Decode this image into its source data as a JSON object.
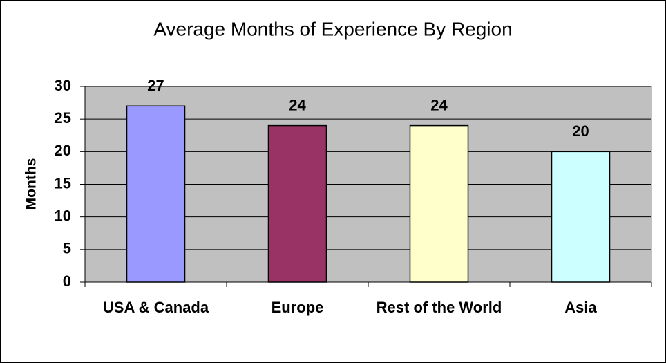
{
  "chart_data": {
    "type": "bar",
    "title": "Average Months of Experience By Region",
    "y_label": "Months",
    "categories": [
      "USA & Canada",
      "Europe",
      "Rest of the World",
      "Asia"
    ],
    "values": [
      27,
      24,
      24,
      20
    ],
    "colors": [
      "#9999ff",
      "#993366",
      "#ffffcc",
      "#ccffff"
    ],
    "ylim": [
      0,
      30
    ],
    "yticks": [
      0,
      5,
      10,
      15,
      20,
      25,
      30
    ],
    "grid": true
  }
}
